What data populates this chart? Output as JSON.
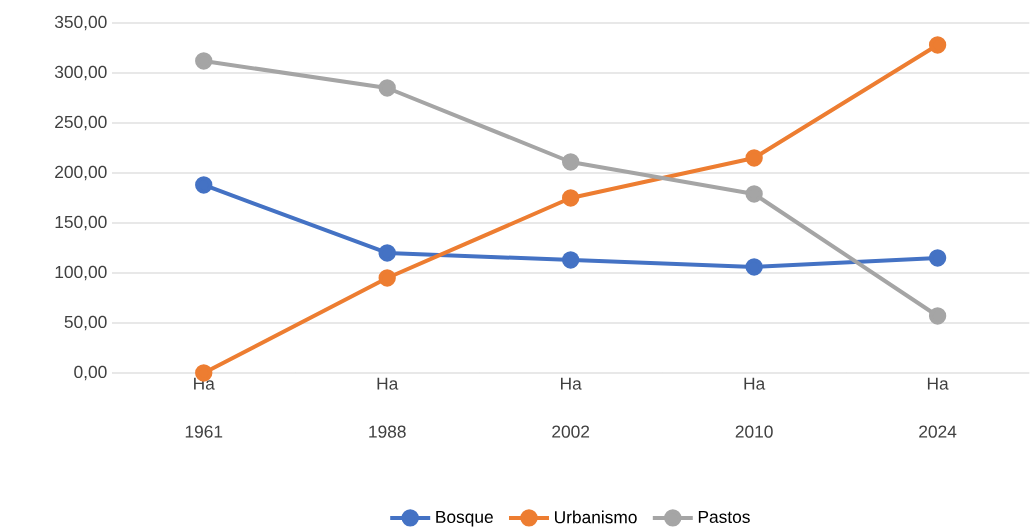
{
  "chart_data": {
    "type": "line",
    "categories": [
      "Ha 1961",
      "Ha 1988",
      "Ha 2002",
      "Ha 2010",
      "Ha 2024"
    ],
    "series": [
      {
        "name": "Bosque",
        "color": "#4472c4",
        "values": [
          188,
          120,
          113,
          106,
          115
        ]
      },
      {
        "name": "Urbanismo",
        "color": "#ed7d31",
        "values": [
          0,
          95,
          175,
          215,
          328
        ]
      },
      {
        "name": "Pastos",
        "color": "#a5a5a5",
        "values": [
          312,
          285,
          211,
          179,
          57
        ]
      }
    ],
    "ylim": [
      0,
      350
    ],
    "yticks": [
      {
        "value": 0,
        "label": "0,00"
      },
      {
        "value": 50,
        "label": "50,00"
      },
      {
        "value": 100,
        "label": "100,00"
      },
      {
        "value": 150,
        "label": "150,00"
      },
      {
        "value": 200,
        "label": "200,00"
      },
      {
        "value": 250,
        "label": "250,00"
      },
      {
        "value": 300,
        "label": "300,00"
      },
      {
        "value": 350,
        "label": "350,00"
      }
    ],
    "grid": "y",
    "legend": "bottom",
    "marker": "circle",
    "line_style": "solid"
  }
}
